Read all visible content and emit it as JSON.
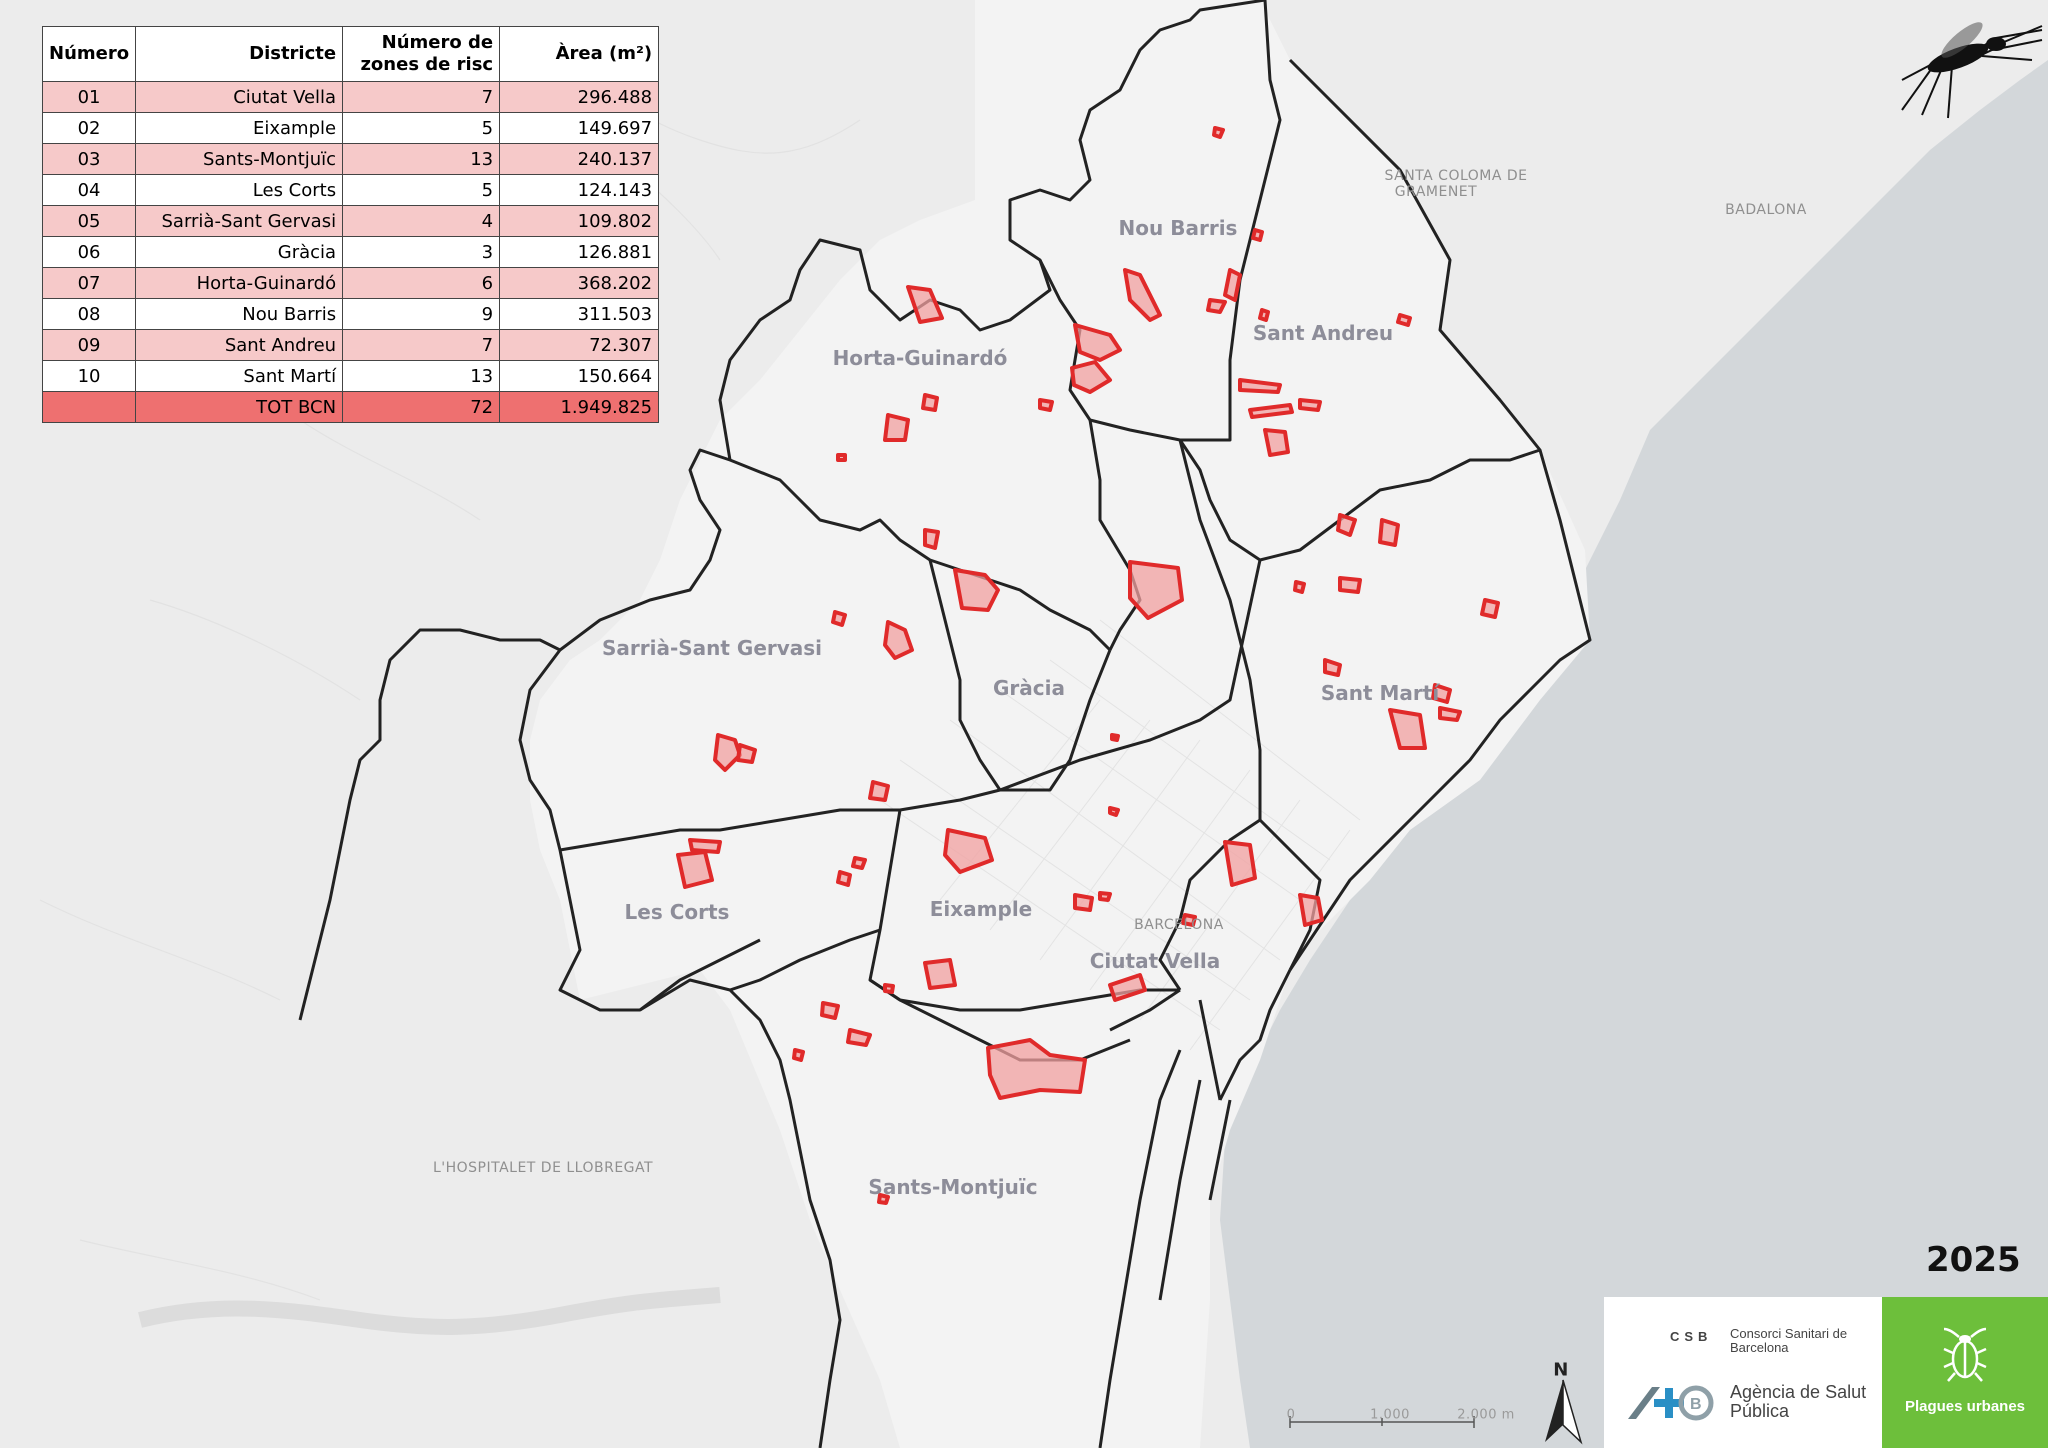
{
  "table": {
    "headers": [
      "Número",
      "Districte",
      "Número de zones de risc",
      "Àrea (m²)"
    ],
    "header_line1": "Número de",
    "header_line2": "zones de risc",
    "rows": [
      {
        "num": "01",
        "district": "Ciutat Vella",
        "zones": "7",
        "area": "296.488"
      },
      {
        "num": "02",
        "district": "Eixample",
        "zones": "5",
        "area": "149.697"
      },
      {
        "num": "03",
        "district": "Sants-Montjuïc",
        "zones": "13",
        "area": "240.137"
      },
      {
        "num": "04",
        "district": "Les Corts",
        "zones": "5",
        "area": "124.143"
      },
      {
        "num": "05",
        "district": "Sarrià-Sant Gervasi",
        "zones": "4",
        "area": "109.802"
      },
      {
        "num": "06",
        "district": "Gràcia",
        "zones": "3",
        "area": "126.881"
      },
      {
        "num": "07",
        "district": "Horta-Guinardó",
        "zones": "6",
        "area": "368.202"
      },
      {
        "num": "08",
        "district": "Nou Barris",
        "zones": "9",
        "area": "311.503"
      },
      {
        "num": "09",
        "district": "Sant Andreu",
        "zones": "7",
        "area": "72.307"
      },
      {
        "num": "10",
        "district": "Sant Martí",
        "zones": "13",
        "area": "150.664"
      }
    ],
    "total": {
      "num": "",
      "district": "TOT BCN",
      "zones": "72",
      "area": "1.949.825"
    }
  },
  "district_labels": {
    "nou_barris": "Nou Barris",
    "sant_andreu": "Sant Andreu",
    "horta_guinardo": "Horta-Guinardó",
    "sarria": "Sarrià-Sant Gervasi",
    "gracia": "Gràcia",
    "sant_marti": "Sant Martí",
    "les_corts": "Les Corts",
    "eixample": "Eixample",
    "ciutat_vella": "Ciutat Vella",
    "sants_montjuic": "Sants-Montjuïc"
  },
  "place_labels": {
    "santa_coloma_1": "SANTA COLOMA DE",
    "santa_coloma_2": "GRAMENET",
    "badalona": "BADALONA",
    "barcelona": "BARCELONA",
    "hospitalet": "L'HOSPITALET DE LLOBREGAT"
  },
  "year": "2025",
  "scale": {
    "t0": "0",
    "t1": "1.000",
    "t2": "2.000 m"
  },
  "north": "N",
  "logos": {
    "csb_abbr": "CSB",
    "csb_name": "Consorci Sanitari de Barcelona",
    "asp_name": "Agència de Salut Pública",
    "plagues": "Plagues urbanes"
  },
  "colors": {
    "risk_zone_fill": "#f2a0a0",
    "risk_zone_stroke": "#e02a2a",
    "sea": "#d4d8db",
    "land": "#ededed",
    "city_land": "#f3f3f3",
    "boundary": "#222222",
    "row_alt": "#f6c9c9",
    "row_total": "#ee7070",
    "brand_green": "#6dbf3b"
  }
}
